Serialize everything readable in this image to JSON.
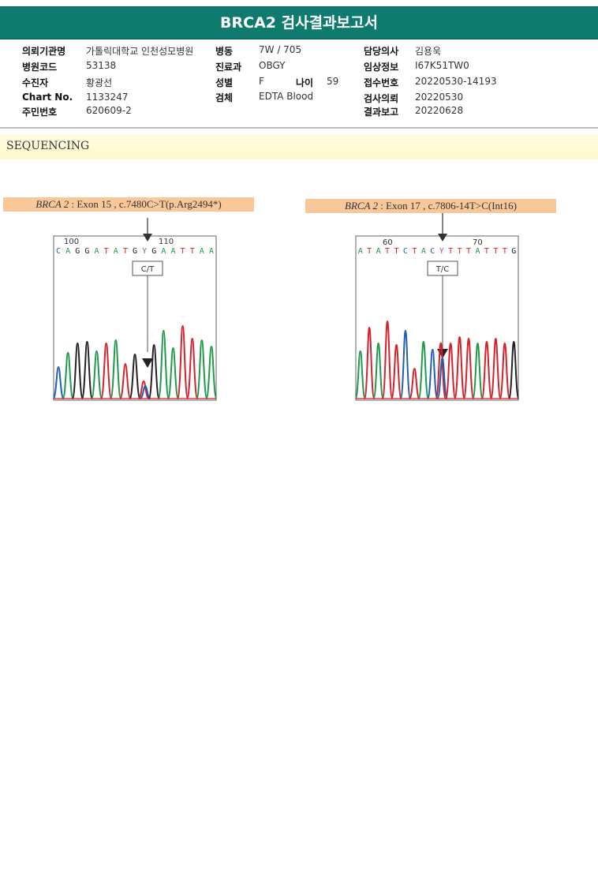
{
  "header": {
    "title": "BRCA2 검사결과보고서"
  },
  "patient": {
    "col1": [
      {
        "label": "의뢰기관명",
        "value": "가톨릭대학교 인천성모병원"
      },
      {
        "label": "병원코드",
        "value": "53138"
      },
      {
        "label": "수진자",
        "value": "황광선"
      },
      {
        "label": "Chart No.",
        "value": "1133247"
      },
      {
        "label": "주민번호",
        "value": "620609-2"
      }
    ],
    "col2": [
      {
        "label": "병동",
        "value": "7W / 705"
      },
      {
        "label": "진료과",
        "value": "OBGY"
      },
      {
        "label": "성별",
        "value": "F"
      },
      {
        "label": "검체",
        "value": "EDTA Blood"
      }
    ],
    "age": {
      "label": "나이",
      "value": "59"
    },
    "col3": [
      {
        "label": "담당의사",
        "value": "김용욱"
      },
      {
        "label": "임상정보",
        "value": "I67K51TW0"
      },
      {
        "label": "접수번호",
        "value": "20220530-14193"
      },
      {
        "label": "검사의뢰",
        "value": "20220530"
      },
      {
        "label": "결과보고",
        "value": "20220628"
      }
    ]
  },
  "section": {
    "title": "SEQUENCING"
  },
  "variants": [
    {
      "gene": "BRCA 2",
      "detail": ": Exon 15 , c.7480C>T(p.Arg2494*)",
      "pos_start": "100",
      "pos_end": "110",
      "sequence": "CAGGATATGYGAATTAA",
      "call": "C/T"
    },
    {
      "gene": "BRCA 2",
      "detail": ": Exon 17 , c.7806-14T>C(Int16)",
      "pos_start": "60",
      "pos_end": "70",
      "sequence": "ATATTCTACYTTTATTTG",
      "call": "T/C"
    }
  ],
  "colors": {
    "header_bg": "#0f7b6f",
    "A": "#1f9a4a",
    "C": "#1f5fb5",
    "G": "#222222",
    "T": "#d8202a",
    "label_bg": "#f8c89a"
  }
}
